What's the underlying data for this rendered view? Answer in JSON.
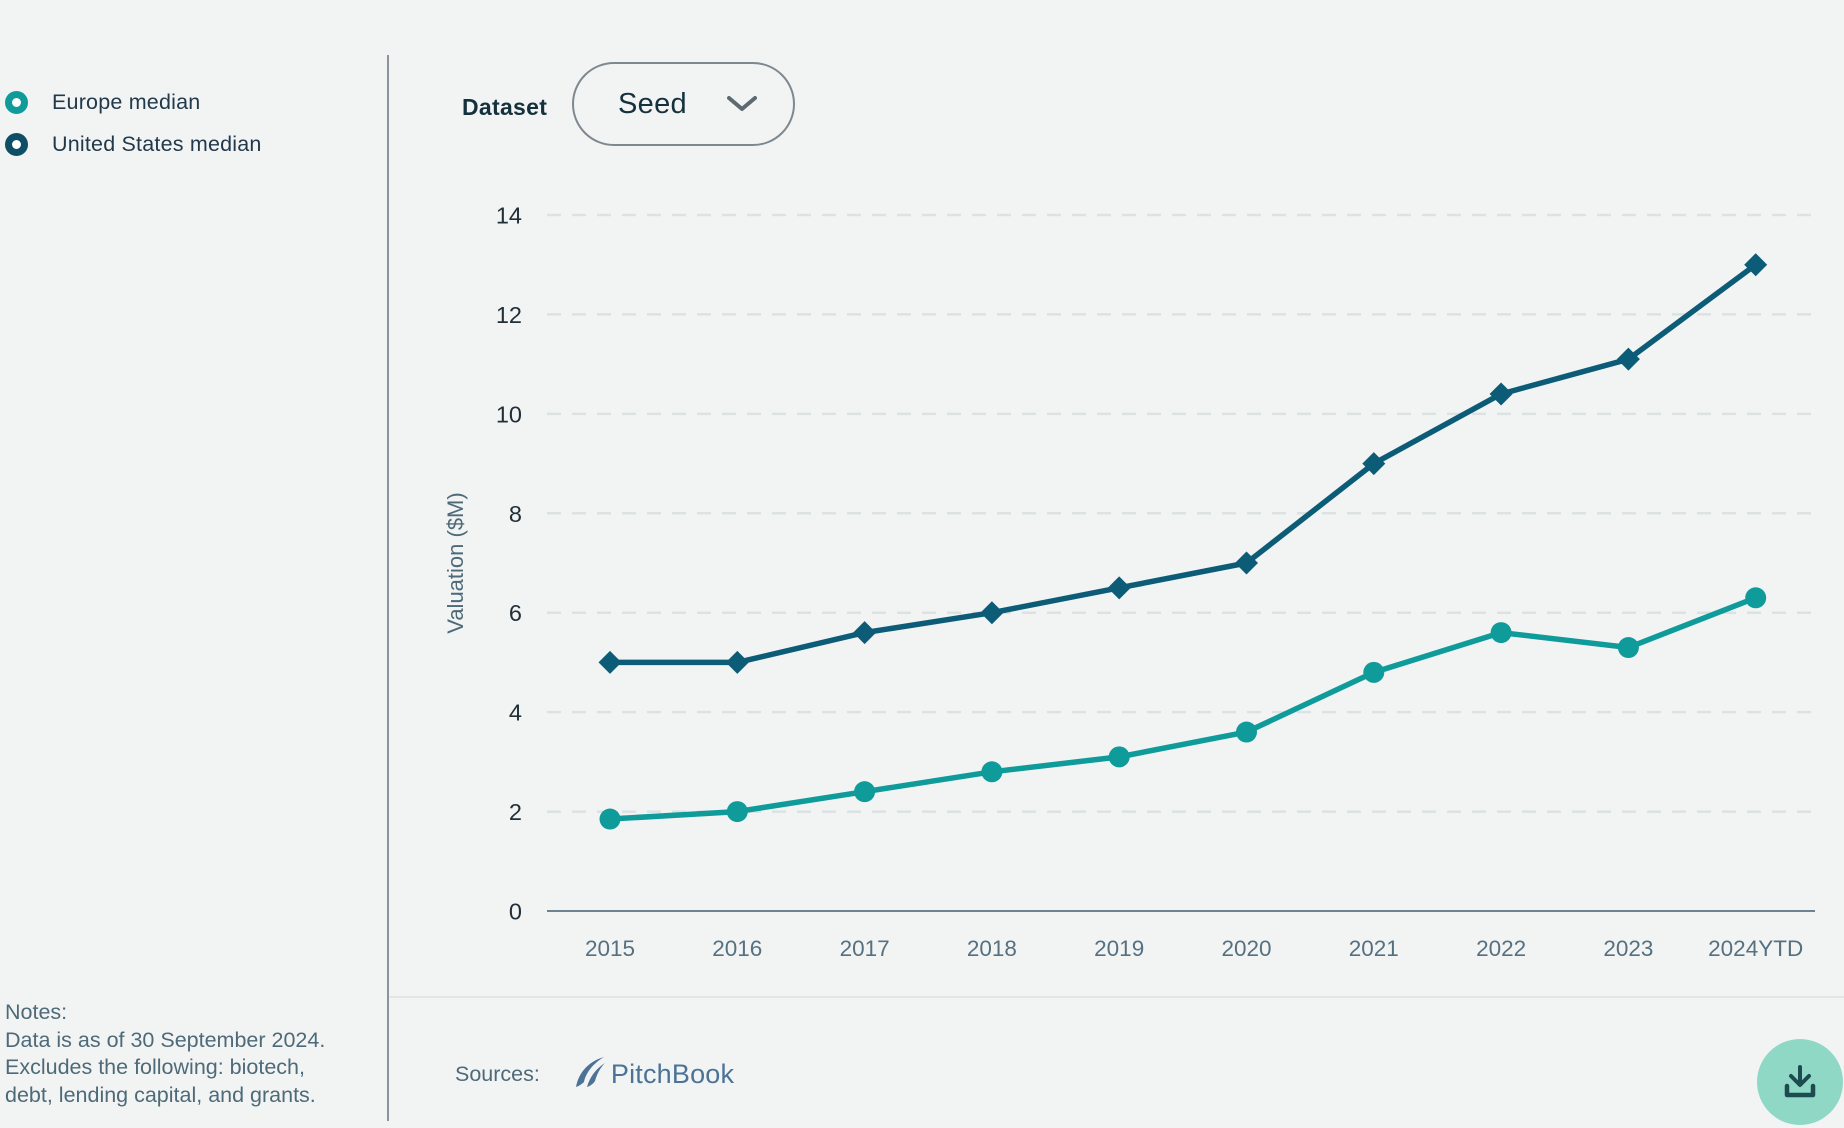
{
  "sidebar": {
    "legend_items": [
      {
        "label": "Europe median",
        "color": "#109B9B"
      },
      {
        "label": "United States median",
        "color": "#0D4F66"
      }
    ],
    "notes": {
      "title": "Notes:",
      "lines": [
        "Data is as of 30 September 2024.",
        "Excludes the following: biotech,",
        "debt, lending capital, and grants."
      ]
    }
  },
  "header": {
    "dataset_label": "Dataset",
    "dataset_value": "Seed",
    "chevron_icon": "chevron-down"
  },
  "footer": {
    "sources_label": "Sources:",
    "source_name": "PitchBook"
  },
  "download_button": {
    "icon": "download"
  },
  "colors": {
    "background": "#f2f4f4",
    "europe_line": "#109B9B",
    "us_line": "#0D5C77",
    "grid": "#dce2e2",
    "axis": "#6e8290",
    "y_tick_text": "#212f38",
    "x_tick_text": "#56707f",
    "slate_text": "#4e6a79",
    "dark_text": "#15313d",
    "pitchbook_blue": "#4c7396",
    "download_bg": "#8fd8c5",
    "download_icon": "#1d4b50"
  },
  "chart_data": {
    "type": "line",
    "title": "",
    "xlabel": "",
    "ylabel": "Valuation ($M)",
    "x": [
      "2015",
      "2016",
      "2017",
      "2018",
      "2019",
      "2020",
      "2021",
      "2022",
      "2023",
      "2024YTD"
    ],
    "series": [
      {
        "name": "Europe median",
        "color": "#109B9B",
        "marker": "circle",
        "values": [
          1.85,
          2.0,
          2.4,
          2.8,
          3.1,
          3.6,
          4.8,
          5.6,
          5.3,
          6.3
        ]
      },
      {
        "name": "United States median",
        "color": "#0D5C77",
        "marker": "diamond",
        "values": [
          5.0,
          5.0,
          5.6,
          6.0,
          6.5,
          7.0,
          9.0,
          10.4,
          11.1,
          13.0
        ]
      }
    ],
    "ylim": [
      0,
      14
    ],
    "yticks": [
      0,
      2,
      4,
      6,
      8,
      10,
      12,
      14
    ],
    "grid": "horizontal-dashed",
    "legend_position": "left-sidebar"
  }
}
